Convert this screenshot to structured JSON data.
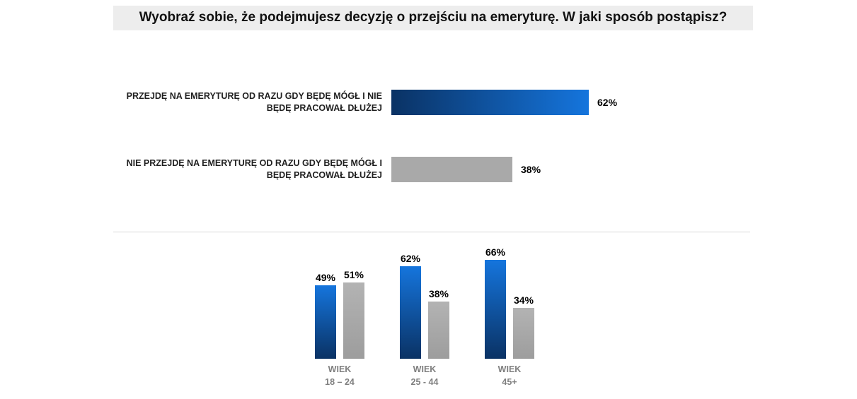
{
  "title": "Wyobraź sobie, że podejmujesz decyzję o przejściu na emeryturę. W jaki sposób postąpisz?",
  "colors": {
    "blue_dark": "#0a3264",
    "blue_light": "#1575dd",
    "gray_bar": "#a9a9a9",
    "title_bg": "#ededed",
    "caption_gray": "#7f7f7f"
  },
  "chart_data": [
    {
      "type": "bar",
      "orientation": "horizontal",
      "categories": [
        "PRZEJDĘ NA EMERYTURĘ OD RAZU GDY BĘDĘ MÓGŁ I NIE BĘDĘ PRACOWAŁ DŁUŻEJ",
        "NIE PRZEJDĘ NA EMERYTURĘ OD RAZU GDY BĘDĘ MÓGŁ I BĘDĘ PRACOWAŁ DŁUŻEJ"
      ],
      "values": [
        62,
        38
      ],
      "data_labels": [
        "62%",
        "38%"
      ],
      "xlim": [
        0,
        100
      ],
      "bar_colors": [
        "blue-gradient",
        "gray"
      ],
      "grid": false,
      "legend": false
    },
    {
      "type": "bar",
      "orientation": "vertical",
      "grouped": true,
      "categories": [
        {
          "line1": "WIEK",
          "line2": "18 – 24"
        },
        {
          "line1": "WIEK",
          "line2": "25 - 44"
        },
        {
          "line1": "WIEK",
          "line2": "45+"
        }
      ],
      "series": [
        {
          "name": "blue",
          "values": [
            49,
            62,
            66
          ],
          "labels": [
            "49%",
            "62%",
            "66%"
          ]
        },
        {
          "name": "gray",
          "values": [
            51,
            38,
            34
          ],
          "labels": [
            "51%",
            "38%",
            "34%"
          ]
        }
      ],
      "ylim": [
        0,
        100
      ],
      "grid": false,
      "legend": false
    }
  ]
}
